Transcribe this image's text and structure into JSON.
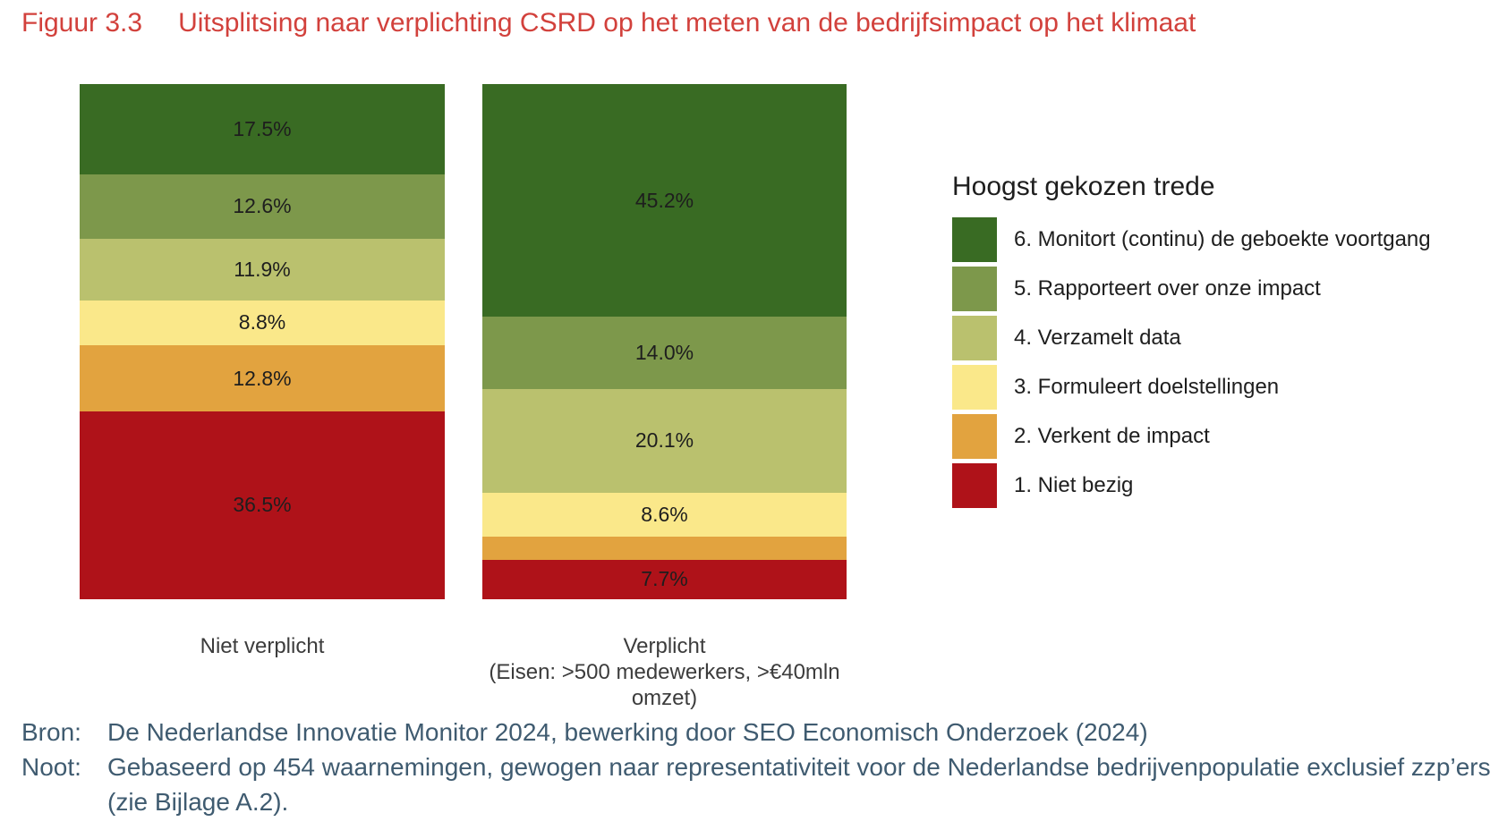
{
  "title": {
    "label": "Figuur 3.3",
    "text": "Uitsplitsing naar verplichting CSRD op het meten van de bedrijfsimpact op het klimaat"
  },
  "chart_data": {
    "type": "bar",
    "subtype": "100%-stacked-vertical",
    "title": "Uitsplitsing naar verplichting CSRD op het meten van de bedrijfsimpact op het klimaat",
    "unit": "%",
    "ylim": [
      0,
      100
    ],
    "grid": false,
    "legend_title": "Hoogst gekozen trede",
    "legend_position": "right",
    "stack_order": "top-to-bottom",
    "categories": [
      {
        "label": "Niet verplicht",
        "sublabel": ""
      },
      {
        "label": "Verplicht",
        "sublabel": "(Eisen: >500 medewerkers, >€40mln omzet)"
      }
    ],
    "series": [
      {
        "name": "6. Monitort (continu) de geboekte voortgang",
        "color": "#396B23",
        "values": [
          17.5,
          45.2
        ],
        "labels": [
          "17.5%",
          "45.2%"
        ]
      },
      {
        "name": "5. Rapporteert over onze impact",
        "color": "#7D984B",
        "values": [
          12.6,
          14.0
        ],
        "labels": [
          "12.6%",
          "14.0%"
        ]
      },
      {
        "name": "4. Verzamelt data",
        "color": "#BAC16E",
        "values": [
          11.9,
          20.1
        ],
        "labels": [
          "11.9%",
          "20.1%"
        ]
      },
      {
        "name": "3. Formuleert doelstellingen",
        "color": "#FAE88A",
        "values": [
          8.8,
          8.6
        ],
        "labels": [
          "8.8%",
          "8.6%"
        ]
      },
      {
        "name": "2. Verkent de impact",
        "color": "#E2A33F",
        "values": [
          12.8,
          4.4
        ],
        "labels": [
          "12.8%",
          ""
        ]
      },
      {
        "name": "1. Niet bezig",
        "color": "#AF1219",
        "values": [
          36.5,
          7.7
        ],
        "labels": [
          "36.5%",
          "7.7%"
        ]
      }
    ]
  },
  "footer": {
    "bron_label": "Bron:",
    "bron_text": "De Nederlandse Innovatie Monitor 2024, bewerking door SEO Economisch Onderzoek (2024)",
    "noot_label": "Noot:",
    "noot_text": "Gebaseerd op 454 waarnemingen, gewogen naar representativiteit voor de Nederlandse bedrijvenpopulatie exclusief zzp’ers (zie Bijlage A.2)."
  },
  "colors": {
    "title_red": "#D2413C",
    "footer_text": "#3F5B70",
    "label_text": "#1E1E1E"
  }
}
